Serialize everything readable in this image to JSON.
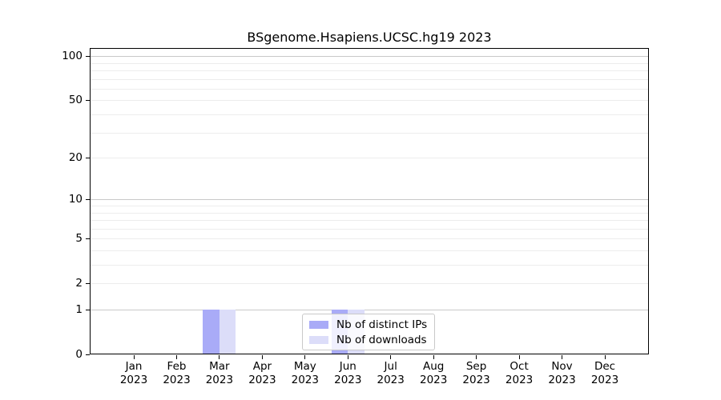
{
  "chart_data": {
    "type": "bar",
    "title": "BSgenome.Hsapiens.UCSC.hg19 2023",
    "categories": [
      "Jan 2023",
      "Feb 2023",
      "Mar 2023",
      "Apr 2023",
      "May 2023",
      "Jun 2023",
      "Jul 2023",
      "Aug 2023",
      "Sep 2023",
      "Oct 2023",
      "Nov 2023",
      "Dec 2023"
    ],
    "series": [
      {
        "name": "Nb of distinct IPs",
        "color": "#a9abf7",
        "values": [
          0,
          0,
          1,
          0,
          0,
          1,
          0,
          0,
          0,
          0,
          0,
          0
        ]
      },
      {
        "name": "Nb of downloads",
        "color": "#dcddf9",
        "values": [
          0,
          0,
          1,
          0,
          0,
          1,
          0,
          0,
          0,
          0,
          0,
          0
        ]
      }
    ],
    "xlabel": "",
    "ylabel": "",
    "yticks": [
      0,
      1,
      2,
      5,
      10,
      20,
      50,
      100
    ],
    "ylim": [
      0,
      114
    ],
    "yscale": "log10(1+x)",
    "grid": true,
    "legend_position": "inside-bottom-center"
  }
}
